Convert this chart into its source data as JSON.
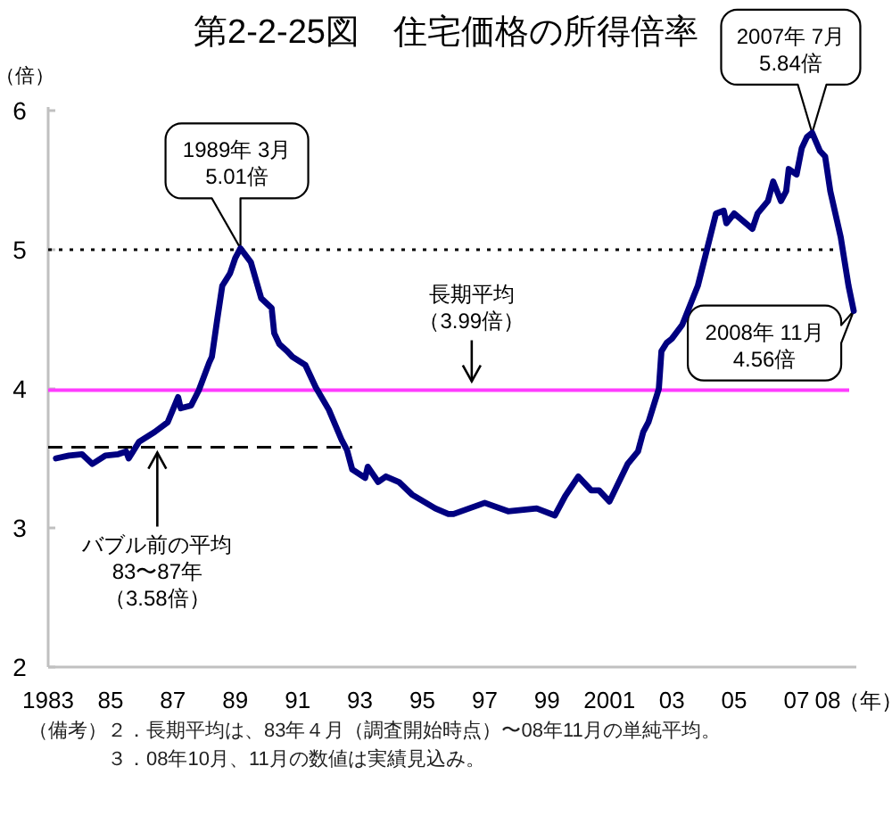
{
  "chart_data": {
    "type": "line",
    "title": "第2-2-25図　住宅価格の所得倍率",
    "ylabel": "（倍）",
    "xlabel": "（年）",
    "xlim": [
      "1983-01",
      "2008-12"
    ],
    "xticks": [
      {
        "value": "1983",
        "label": "1983"
      },
      {
        "value": "1985",
        "label": "85"
      },
      {
        "value": "1987",
        "label": "87"
      },
      {
        "value": "1989",
        "label": "89"
      },
      {
        "value": "1991",
        "label": "91"
      },
      {
        "value": "1993",
        "label": "93"
      },
      {
        "value": "1995",
        "label": "95"
      },
      {
        "value": "1997",
        "label": "97"
      },
      {
        "value": "1999",
        "label": "99"
      },
      {
        "value": "2001",
        "label": "2001"
      },
      {
        "value": "2003",
        "label": "03"
      },
      {
        "value": "2005",
        "label": "05"
      },
      {
        "value": "2007",
        "label": "07"
      },
      {
        "value": "2008",
        "label": "08"
      }
    ],
    "ylim": [
      2,
      6
    ],
    "yticks": [
      2,
      3,
      4,
      5,
      6
    ],
    "series": [
      {
        "color": "#000080",
        "x": [
          "1983-04",
          "1983-09",
          "1984-02",
          "1984-06",
          "1984-11",
          "1985-04",
          "1985-07",
          "1985-08",
          "1985-12",
          "1986-06",
          "1986-11",
          "1987-03",
          "1987-04",
          "1987-08",
          "1987-11",
          "1988-03",
          "1988-04",
          "1988-06",
          "1988-08",
          "1988-11",
          "1989-01",
          "1989-03",
          "1989-07",
          "1989-11",
          "1990-03",
          "1990-04",
          "1990-06",
          "1990-09",
          "1990-11",
          "1991-04",
          "1991-08",
          "1992-01",
          "1992-06",
          "1992-08",
          "1992-10",
          "1993-03",
          "1993-04",
          "1993-08",
          "1993-11",
          "1994-04",
          "1994-09",
          "1995-06",
          "1995-11",
          "1996-01",
          "1997-01",
          "1997-10",
          "1998-09",
          "1999-04",
          "1999-08",
          "2000-01",
          "2000-06",
          "2000-09",
          "2001-01",
          "2001-08",
          "2001-12",
          "2002-02",
          "2002-04",
          "2002-08",
          "2002-09",
          "2002-11",
          "2003-01",
          "2003-05",
          "2003-11",
          "2004-06",
          "2004-09",
          "2004-10",
          "2005-01",
          "2005-08",
          "2005-10",
          "2006-02",
          "2006-04",
          "2006-07",
          "2006-09",
          "2006-10",
          "2007-01",
          "2007-03",
          "2007-05",
          "2007-07",
          "2007-10",
          "2007-12",
          "2008-02",
          "2008-06",
          "2008-09",
          "2008-11"
        ],
        "values": [
          3.5,
          3.52,
          3.53,
          3.46,
          3.52,
          3.53,
          3.55,
          3.5,
          3.62,
          3.69,
          3.76,
          3.94,
          3.86,
          3.88,
          3.99,
          4.19,
          4.23,
          4.49,
          4.74,
          4.83,
          4.94,
          5.01,
          4.91,
          4.65,
          4.58,
          4.4,
          4.32,
          4.27,
          4.23,
          4.17,
          4.01,
          3.85,
          3.63,
          3.56,
          3.42,
          3.36,
          3.44,
          3.33,
          3.37,
          3.33,
          3.24,
          3.14,
          3.1,
          3.1,
          3.18,
          3.12,
          3.14,
          3.09,
          3.23,
          3.37,
          3.27,
          3.27,
          3.19,
          3.46,
          3.55,
          3.69,
          3.76,
          4.0,
          4.27,
          4.33,
          4.36,
          4.46,
          4.74,
          5.26,
          5.28,
          5.19,
          5.26,
          5.15,
          5.26,
          5.35,
          5.49,
          5.35,
          5.42,
          5.58,
          5.54,
          5.73,
          5.81,
          5.84,
          5.71,
          5.67,
          5.42,
          5.09,
          4.74,
          4.56
        ]
      },
      {
        "type": "line",
        "color": "#000000",
        "line_style": "dashed",
        "x": [
          "1983-01",
          "1992-10"
        ],
        "values": [
          3.58,
          3.58
        ]
      }
    ],
    "ref_lines": [
      {
        "axis": "y",
        "value": 5,
        "color": "#000000",
        "line_style": "dotted"
      },
      {
        "axis": "y",
        "value": 3.99,
        "color": "#ff3cff"
      }
    ],
    "annotations": [
      {
        "text": "1989年 3月\n5.01倍",
        "x": "1989-03",
        "y": 5.01
      },
      {
        "text": "2007年 7月\n5.84倍",
        "x": "2007-07",
        "y": 5.84
      },
      {
        "text": "2008年 11月\n4.56倍",
        "x": "2008-11",
        "y": 4.56
      },
      {
        "text": "長期平均（3.99倍）",
        "x": "1996-08",
        "y": 3.99
      },
      {
        "text": "バブル前の平均\n83〜87年（3.58倍）",
        "x": "1986-07",
        "y": 3.58
      },
      "（備考）",
      "２．長期平均は、83年４月（調査開始時点）〜08年11月の単純平均。",
      "３．08年10月、11月の数値は実績見込み。"
    ]
  }
}
